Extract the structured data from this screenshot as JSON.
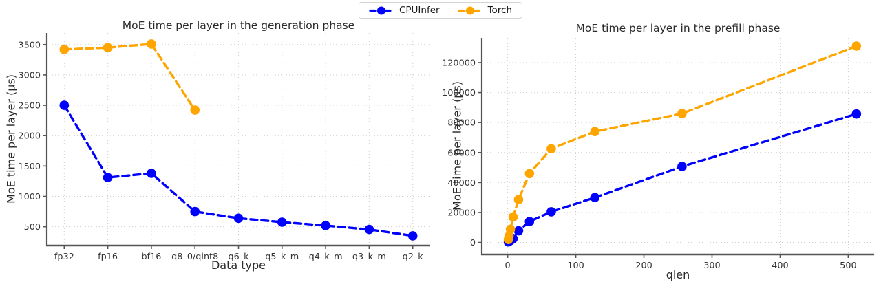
{
  "legend": {
    "items": [
      {
        "label": "CPUInfer",
        "color": "#0000ff"
      },
      {
        "label": "Torch",
        "color": "#ffa500"
      }
    ]
  },
  "colors": {
    "cpuinfer": "#0000ff",
    "torch": "#ffa500",
    "grid": "#cfcfcf",
    "spine": "#555555",
    "tick_text": "#333333",
    "title_text": "#2b2b2b",
    "background": "#ffffff"
  },
  "chart_data": [
    {
      "type": "line",
      "title": "MoE time per layer in the generation phase",
      "xlabel": "Data type",
      "ylabel": "MoE time per layer (µs)",
      "categories": [
        "fp32",
        "fp16",
        "bf16",
        "q8_0/qint8",
        "q6_k",
        "q5_k_m",
        "q4_k_m",
        "q3_k_m",
        "q2_k"
      ],
      "yticks": {
        "values": [
          500,
          1000,
          1500,
          2000,
          2500,
          3000,
          3500
        ],
        "labels": [
          "500",
          "1000",
          "1500",
          "2000",
          "2500",
          "3000",
          "3500"
        ]
      },
      "ylim": [
        190,
        3690
      ],
      "grid": true,
      "legend_position": "top-center",
      "line_style": "dashed",
      "series": [
        {
          "name": "CPUInfer",
          "color": "#0000ff",
          "values": [
            2500,
            1310,
            1380,
            750,
            640,
            575,
            520,
            455,
            350
          ]
        },
        {
          "name": "Torch",
          "color": "#ffa500",
          "values": [
            3420,
            3450,
            3510,
            2420,
            null,
            null,
            null,
            null,
            null
          ]
        }
      ]
    },
    {
      "type": "line",
      "title": "MoE time per layer in the prefill phase",
      "xlabel": "qlen",
      "ylabel": "MoE time per layer (µs)",
      "x": [
        1,
        2,
        4,
        8,
        16,
        32,
        64,
        128,
        256,
        512
      ],
      "xticks": {
        "values": [
          0,
          100,
          200,
          300,
          400,
          500
        ],
        "labels": [
          "0",
          "100",
          "200",
          "300",
          "400",
          "500"
        ]
      },
      "xlim": [
        -38,
        538
      ],
      "yticks": {
        "values": [
          0,
          20000,
          40000,
          60000,
          80000,
          100000,
          120000
        ],
        "labels": [
          "0",
          "20000",
          "40000",
          "60000",
          "80000",
          "100000",
          "120000"
        ]
      },
      "ylim": [
        -8000,
        136500
      ],
      "grid": true,
      "line_style": "dashed",
      "series": [
        {
          "name": "CPUInfer",
          "color": "#0000ff",
          "values": [
            400,
            700,
            1300,
            2600,
            7800,
            14000,
            20500,
            30000,
            50700,
            85700
          ]
        },
        {
          "name": "Torch",
          "color": "#ffa500",
          "values": [
            2000,
            4200,
            8800,
            17000,
            28600,
            46000,
            62500,
            74000,
            86000,
            131000
          ]
        }
      ]
    }
  ]
}
